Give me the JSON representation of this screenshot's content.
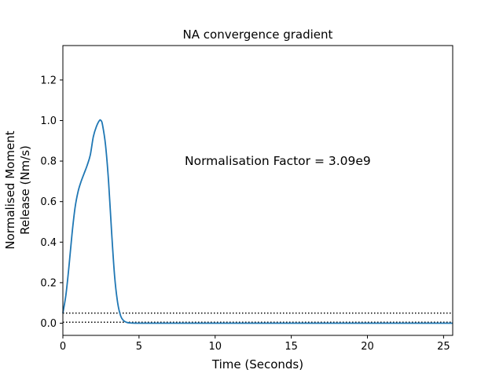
{
  "chart_data": {
    "type": "line",
    "title": "NA convergence gradient",
    "xlabel": "Time (Seconds)",
    "ylabel_lines": [
      "Normalised Moment",
      "Release (Nm/s)"
    ],
    "annotation": "Normalisation Factor = 3.09e9",
    "annotation_position": [
      8.0,
      0.8
    ],
    "xlim": [
      0,
      25.6
    ],
    "ylim": [
      -0.06,
      1.37
    ],
    "xticks": [
      0,
      5,
      10,
      15,
      20,
      25
    ],
    "xtick_labels": [
      "0",
      "5",
      "10",
      "15",
      "20",
      "25"
    ],
    "yticks": [
      0.0,
      0.2,
      0.4,
      0.6,
      0.8,
      1.0,
      1.2
    ],
    "ytick_labels": [
      "0.0",
      "0.2",
      "0.4",
      "0.6",
      "0.8",
      "1.0",
      "1.2"
    ],
    "grid": false,
    "colors": {
      "series": "#1f77b4",
      "reference": "#000000"
    },
    "series": [
      {
        "x": [
          0,
          0.2,
          0.4,
          0.6,
          0.8,
          1.0,
          1.2,
          1.4,
          1.6,
          1.8,
          2.0,
          2.2,
          2.4,
          2.5,
          2.6,
          2.8,
          3.0,
          3.2,
          3.4,
          3.6,
          3.8,
          4.0,
          4.2,
          4.4,
          4.6,
          4.8,
          5.0,
          6.0,
          8.0,
          10.0,
          15.0,
          20.0,
          25.6
        ],
        "y": [
          0.05,
          0.14,
          0.28,
          0.44,
          0.57,
          0.65,
          0.7,
          0.74,
          0.78,
          0.83,
          0.92,
          0.97,
          1.0,
          1.0,
          0.98,
          0.88,
          0.7,
          0.45,
          0.23,
          0.1,
          0.035,
          0.012,
          0.004,
          0.0015,
          0.0006,
          0.0003,
          0.0,
          0.0,
          0.0,
          0.0,
          0.0,
          0.0,
          0.0
        ]
      }
    ],
    "reference_lines": [
      {
        "y": 0.05,
        "style": "dotted"
      },
      {
        "y": 0.005,
        "style": "dotted"
      }
    ]
  }
}
